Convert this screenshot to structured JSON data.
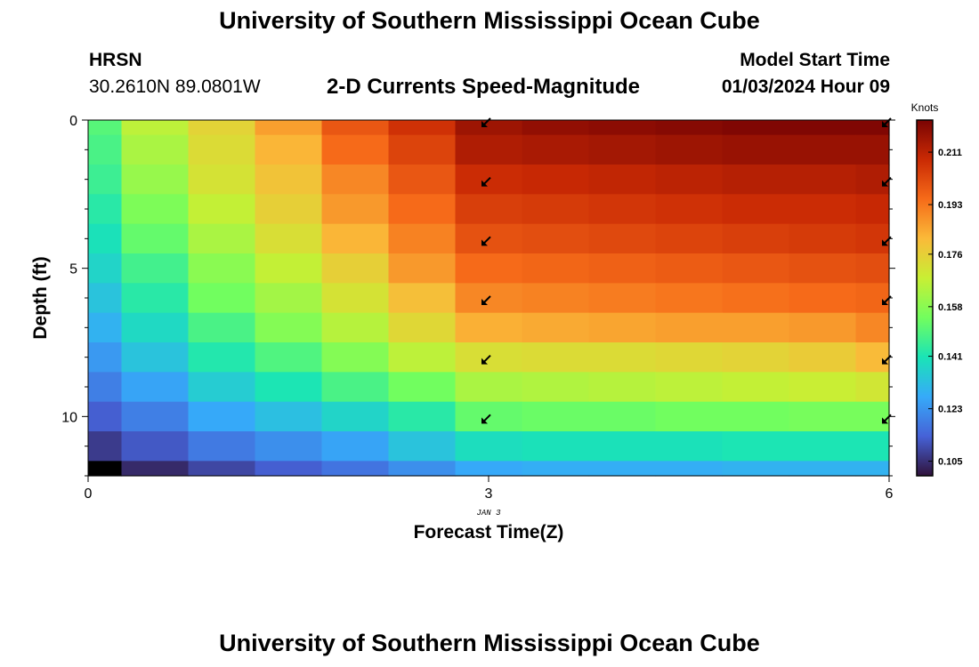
{
  "header": {
    "title": "University of Southern Mississippi Ocean Cube",
    "station": "HRSN",
    "coordinates": "30.2610N  89.0801W",
    "subtitle": "2-D Currents Speed-Magnitude",
    "model_start_label": "Model Start Time",
    "model_start_value": "01/03/2024 Hour 09"
  },
  "footer": {
    "title": "University of Southern Mississippi Ocean Cube"
  },
  "chart_data": {
    "type": "heatmap",
    "title": "2-D Currents Speed-Magnitude",
    "xlabel": "Forecast Time(Z)",
    "ylabel": "Depth (ft)",
    "x_tick_labels": [
      "0",
      "3",
      "6"
    ],
    "x_sub_label": "JAN 3",
    "y_tick_labels": [
      "0",
      "5",
      "10"
    ],
    "xlim": [
      0,
      6
    ],
    "ylim": [
      12,
      0
    ],
    "colorbar": {
      "label": "Knots",
      "ticks": [
        "0.211",
        "0.193",
        "0.176",
        "0.158",
        "0.141",
        "0.123",
        "0.105"
      ],
      "range": [
        0.1,
        0.222
      ],
      "colormap": [
        "#30123b",
        "#4662d7",
        "#36aaf9",
        "#1ae4b6",
        "#72fe5e",
        "#c8ef34",
        "#faba39",
        "#f66b19",
        "#ca2a04",
        "#7a0403"
      ]
    },
    "x_centers": [
      0,
      0.5,
      1,
      1.5,
      2,
      2.5,
      3,
      3.5,
      4,
      4.5,
      5,
      5.5,
      6
    ],
    "depth_centers": [
      0,
      1,
      2,
      3,
      4,
      5,
      6,
      7,
      8,
      9,
      10,
      11,
      12
    ],
    "speed_knots": [
      [
        0.15,
        0.166,
        0.175,
        0.186,
        0.199,
        0.207,
        0.216,
        0.218,
        0.219,
        0.22,
        0.221,
        0.221,
        0.221
      ],
      [
        0.148,
        0.163,
        0.173,
        0.182,
        0.195,
        0.203,
        0.213,
        0.214,
        0.215,
        0.216,
        0.217,
        0.217,
        0.217
      ],
      [
        0.146,
        0.16,
        0.171,
        0.179,
        0.19,
        0.199,
        0.208,
        0.209,
        0.21,
        0.211,
        0.212,
        0.212,
        0.213
      ],
      [
        0.143,
        0.156,
        0.167,
        0.176,
        0.187,
        0.195,
        0.204,
        0.205,
        0.206,
        0.207,
        0.208,
        0.208,
        0.209
      ],
      [
        0.14,
        0.152,
        0.163,
        0.172,
        0.182,
        0.191,
        0.2,
        0.201,
        0.202,
        0.203,
        0.204,
        0.205,
        0.206
      ],
      [
        0.137,
        0.147,
        0.158,
        0.167,
        0.176,
        0.187,
        0.195,
        0.196,
        0.197,
        0.198,
        0.199,
        0.2,
        0.201
      ],
      [
        0.133,
        0.143,
        0.154,
        0.162,
        0.171,
        0.18,
        0.19,
        0.191,
        0.192,
        0.193,
        0.194,
        0.195,
        0.196
      ],
      [
        0.129,
        0.138,
        0.148,
        0.157,
        0.165,
        0.174,
        0.183,
        0.184,
        0.185,
        0.186,
        0.186,
        0.187,
        0.19
      ],
      [
        0.124,
        0.133,
        0.142,
        0.149,
        0.157,
        0.166,
        0.172,
        0.173,
        0.173,
        0.174,
        0.175,
        0.177,
        0.181
      ],
      [
        0.119,
        0.126,
        0.135,
        0.141,
        0.148,
        0.154,
        0.163,
        0.164,
        0.165,
        0.166,
        0.167,
        0.168,
        0.17
      ],
      [
        0.113,
        0.119,
        0.127,
        0.132,
        0.137,
        0.143,
        0.152,
        0.153,
        0.153,
        0.154,
        0.154,
        0.155,
        0.155
      ],
      [
        0.107,
        0.112,
        0.118,
        0.122,
        0.126,
        0.133,
        0.139,
        0.14,
        0.14,
        0.14,
        0.141,
        0.141,
        0.141
      ],
      [
        0.095,
        0.104,
        0.109,
        0.113,
        0.117,
        0.122,
        0.127,
        0.128,
        0.128,
        0.128,
        0.129,
        0.129,
        0.129
      ]
    ],
    "direction_arrows": {
      "x": [
        3,
        6
      ],
      "depth": [
        0,
        2,
        4,
        6,
        8,
        10
      ],
      "direction": "southwest"
    }
  }
}
